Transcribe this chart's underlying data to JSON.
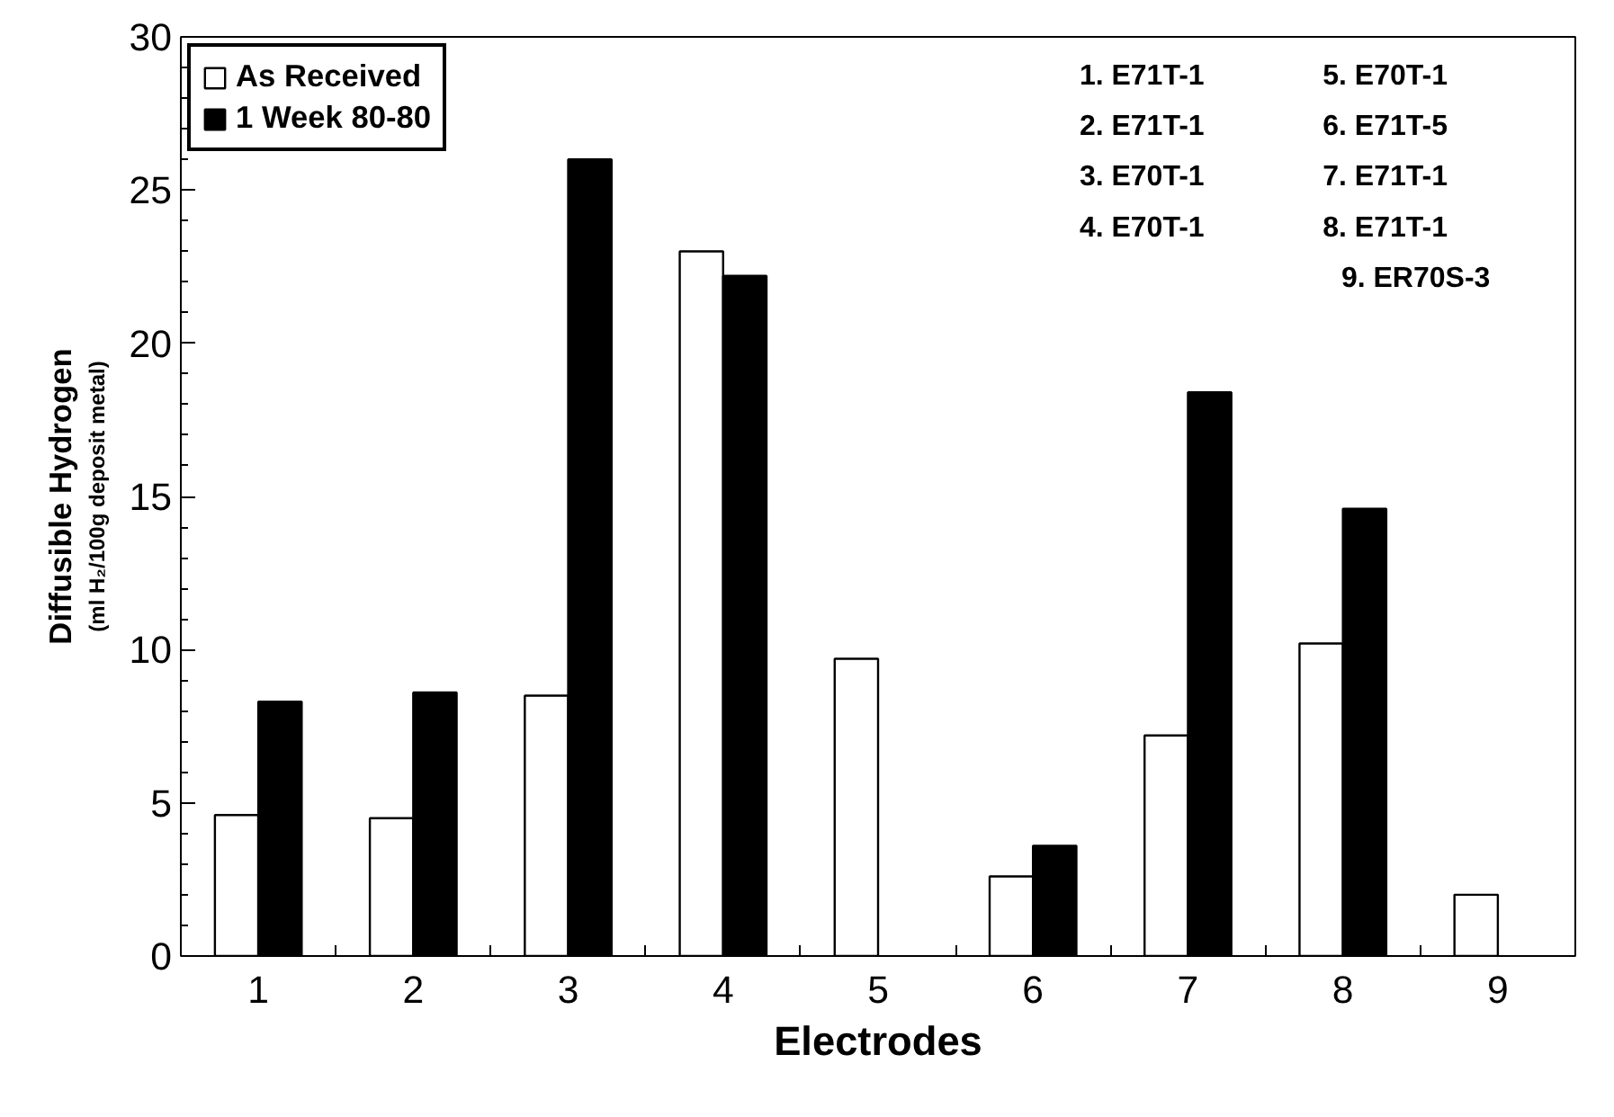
{
  "chart_data": {
    "type": "bar",
    "xlabel": "Electrodes",
    "ylabel": "Diffusible Hydrogen",
    "categories": [
      "1",
      "2",
      "3",
      "4",
      "5",
      "6",
      "7",
      "8",
      "9"
    ],
    "series": [
      {
        "name": "As Received",
        "color": "#ffffff",
        "values": [
          4.6,
          4.5,
          8.5,
          23.0,
          9.7,
          2.6,
          7.2,
          10.2,
          2.0
        ]
      },
      {
        "name": "1 Week 80-80",
        "color": "#000000",
        "values": [
          8.3,
          8.6,
          26.0,
          22.2,
          null,
          3.6,
          18.4,
          14.6,
          null
        ]
      }
    ],
    "ylim": [
      0,
      30
    ],
    "yticks": [
      0,
      5,
      10,
      15,
      20,
      25,
      30
    ],
    "grid": false,
    "legend": "top left",
    "annotations": [
      "(ml H₂/100g deposit metal)",
      "1. E71T-1",
      "2. E71T-1",
      "3. E70T-1",
      "4. E70T-1",
      "5. E70T-1",
      "6. E71T-5",
      "7. E71T-1",
      "8. E71T-1",
      "9. ER70S-3"
    ]
  }
}
